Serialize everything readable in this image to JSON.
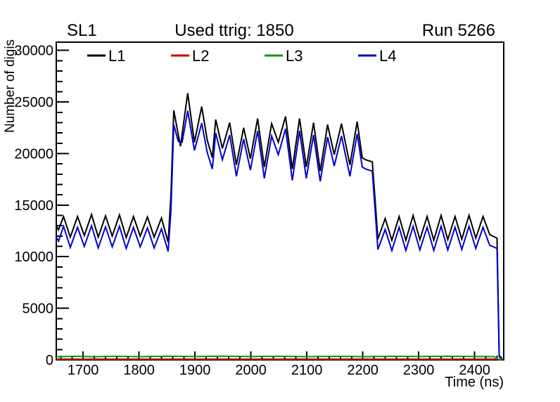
{
  "header": {
    "left": "SL1",
    "center": "Used ttrig: 1850",
    "right": "Run 5266"
  },
  "chart_data": {
    "type": "line",
    "title": "Used ttrig: 1850",
    "subtitle_left": "SL1",
    "subtitle_right": "Run 5266",
    "xlabel": "Time (ns)",
    "ylabel": "Number of digis",
    "xlim": [
      1652,
      2452
    ],
    "ylim": [
      0,
      30800
    ],
    "x_major_ticks": [
      1700,
      1800,
      1900,
      2000,
      2100,
      2200,
      2300,
      2400
    ],
    "x_minor_step": 20,
    "y_major_ticks": [
      0,
      5000,
      10000,
      15000,
      20000,
      25000,
      30000
    ],
    "y_minor_step": 1000,
    "grid": false,
    "legend_position": "top-inside-horizontal",
    "series": [
      {
        "name": "L1",
        "color": "#000000",
        "points": [
          [
            1652,
            13000
          ],
          [
            1656,
            12600
          ],
          [
            1665,
            13900
          ],
          [
            1677,
            11900
          ],
          [
            1690,
            13900
          ],
          [
            1702,
            12050
          ],
          [
            1715,
            14100
          ],
          [
            1727,
            11900
          ],
          [
            1740,
            13950
          ],
          [
            1752,
            12000
          ],
          [
            1765,
            14050
          ],
          [
            1777,
            11850
          ],
          [
            1790,
            13900
          ],
          [
            1802,
            12000
          ],
          [
            1815,
            13850
          ],
          [
            1827,
            11900
          ],
          [
            1840,
            13750
          ],
          [
            1852,
            11400
          ],
          [
            1857,
            16000
          ],
          [
            1862,
            24200
          ],
          [
            1874,
            20700
          ],
          [
            1887,
            25850
          ],
          [
            1899,
            21100
          ],
          [
            1912,
            24550
          ],
          [
            1922,
            21300
          ],
          [
            1931,
            19600
          ],
          [
            1937,
            23300
          ],
          [
            1949,
            20500
          ],
          [
            1962,
            23000
          ],
          [
            1974,
            18900
          ],
          [
            1987,
            22500
          ],
          [
            1999,
            19500
          ],
          [
            2012,
            23400
          ],
          [
            2024,
            18700
          ],
          [
            2037,
            22900
          ],
          [
            2049,
            21100
          ],
          [
            2062,
            23600
          ],
          [
            2074,
            18500
          ],
          [
            2087,
            23400
          ],
          [
            2099,
            18700
          ],
          [
            2112,
            23000
          ],
          [
            2124,
            18300
          ],
          [
            2137,
            22800
          ],
          [
            2149,
            19900
          ],
          [
            2162,
            22900
          ],
          [
            2177,
            18900
          ],
          [
            2190,
            23100
          ],
          [
            2199,
            19600
          ],
          [
            2205,
            19400
          ],
          [
            2217,
            19200
          ],
          [
            2222,
            15500
          ],
          [
            2227,
            11700
          ],
          [
            2240,
            13700
          ],
          [
            2252,
            11600
          ],
          [
            2265,
            13900
          ],
          [
            2277,
            11600
          ],
          [
            2290,
            14000
          ],
          [
            2302,
            11650
          ],
          [
            2315,
            13900
          ],
          [
            2327,
            11600
          ],
          [
            2340,
            14000
          ],
          [
            2352,
            11650
          ],
          [
            2365,
            13900
          ],
          [
            2377,
            11700
          ],
          [
            2390,
            14000
          ],
          [
            2402,
            11800
          ],
          [
            2415,
            13900
          ],
          [
            2427,
            12150
          ],
          [
            2434,
            11950
          ],
          [
            2440,
            11800
          ],
          [
            2444,
            400
          ],
          [
            2449,
            150
          ]
        ]
      },
      {
        "name": "L2",
        "color": "#cc0000",
        "points": [
          [
            1652,
            70
          ],
          [
            2438,
            70
          ],
          [
            2444,
            30
          ],
          [
            2449,
            20
          ]
        ]
      },
      {
        "name": "L3",
        "color": "#009900",
        "points": [
          [
            1652,
            300
          ],
          [
            1690,
            340
          ],
          [
            1715,
            300
          ],
          [
            1760,
            340
          ],
          [
            1800,
            310
          ],
          [
            1850,
            350
          ],
          [
            1900,
            320
          ],
          [
            1950,
            350
          ],
          [
            2000,
            320
          ],
          [
            2050,
            340
          ],
          [
            2100,
            310
          ],
          [
            2150,
            340
          ],
          [
            2200,
            310
          ],
          [
            2250,
            340
          ],
          [
            2300,
            320
          ],
          [
            2350,
            340
          ],
          [
            2400,
            320
          ],
          [
            2435,
            310
          ],
          [
            2442,
            60
          ],
          [
            2449,
            40
          ]
        ]
      },
      {
        "name": "L4",
        "color": "#0000cc",
        "points": [
          [
            1652,
            11900
          ],
          [
            1656,
            11500
          ],
          [
            1665,
            12950
          ],
          [
            1677,
            10900
          ],
          [
            1690,
            12850
          ],
          [
            1702,
            11000
          ],
          [
            1715,
            13000
          ],
          [
            1727,
            10850
          ],
          [
            1740,
            12900
          ],
          [
            1752,
            10950
          ],
          [
            1765,
            12950
          ],
          [
            1777,
            10800
          ],
          [
            1790,
            12850
          ],
          [
            1802,
            10950
          ],
          [
            1815,
            12800
          ],
          [
            1827,
            10850
          ],
          [
            1840,
            12700
          ],
          [
            1852,
            10500
          ],
          [
            1857,
            14500
          ],
          [
            1862,
            22800
          ],
          [
            1870,
            21200
          ],
          [
            1877,
            21100
          ],
          [
            1887,
            24150
          ],
          [
            1899,
            20300
          ],
          [
            1912,
            22950
          ],
          [
            1922,
            20100
          ],
          [
            1931,
            18500
          ],
          [
            1937,
            22000
          ],
          [
            1949,
            19400
          ],
          [
            1962,
            21800
          ],
          [
            1974,
            17800
          ],
          [
            1987,
            21400
          ],
          [
            1999,
            18400
          ],
          [
            2012,
            22200
          ],
          [
            2024,
            17600
          ],
          [
            2037,
            21700
          ],
          [
            2049,
            19900
          ],
          [
            2062,
            22400
          ],
          [
            2074,
            17400
          ],
          [
            2087,
            22200
          ],
          [
            2099,
            17600
          ],
          [
            2112,
            21800
          ],
          [
            2124,
            17300
          ],
          [
            2137,
            21600
          ],
          [
            2149,
            18800
          ],
          [
            2162,
            21700
          ],
          [
            2177,
            17800
          ],
          [
            2190,
            21900
          ],
          [
            2199,
            18700
          ],
          [
            2205,
            18500
          ],
          [
            2217,
            18300
          ],
          [
            2222,
            14500
          ],
          [
            2227,
            10700
          ],
          [
            2240,
            12650
          ],
          [
            2252,
            10600
          ],
          [
            2265,
            12850
          ],
          [
            2277,
            10600
          ],
          [
            2290,
            12950
          ],
          [
            2302,
            10650
          ],
          [
            2315,
            12850
          ],
          [
            2327,
            10600
          ],
          [
            2340,
            12950
          ],
          [
            2352,
            10650
          ],
          [
            2365,
            12850
          ],
          [
            2377,
            10700
          ],
          [
            2390,
            12950
          ],
          [
            2402,
            10800
          ],
          [
            2415,
            12850
          ],
          [
            2427,
            11100
          ],
          [
            2434,
            10950
          ],
          [
            2440,
            10800
          ],
          [
            2444,
            300
          ],
          [
            2449,
            100
          ]
        ]
      }
    ]
  }
}
